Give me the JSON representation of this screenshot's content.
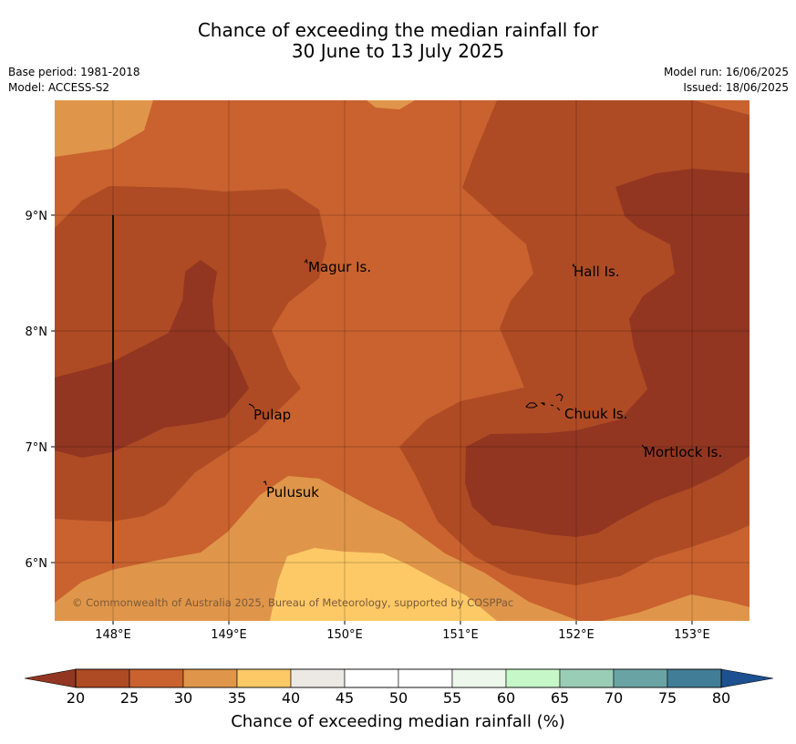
{
  "title": {
    "line1": "Chance of exceeding the median rainfall for",
    "line2": "30 June to 13 July 2025"
  },
  "meta": {
    "base_period": "Base period: 1981-2018",
    "model": "Model: ACCESS-S2",
    "model_run": "Model run: 16/06/2025",
    "issued": "Issued: 18/06/2025"
  },
  "map": {
    "lon_ticks": [
      "148°E",
      "149°E",
      "150°E",
      "151°E",
      "152°E",
      "153°E"
    ],
    "lat_ticks": [
      "9°N",
      "8°N",
      "7°N",
      "6°N"
    ],
    "places": [
      "Magur Is.",
      "Hall Is.",
      "Pulap",
      "Chuuk Is.",
      "Mortlock Is.",
      "Pulusuk"
    ],
    "copyright": "© Commonwealth of Australia 2025, Bureau of Meteorology, supported by COSPPac"
  },
  "colorbar": {
    "ticks": [
      "20",
      "25",
      "30",
      "35",
      "40",
      "45",
      "50",
      "55",
      "60",
      "65",
      "70",
      "75",
      "80"
    ],
    "colors": [
      "#ae4b24",
      "#c9622f",
      "#e0964a",
      "#fdc966",
      "#ece8e4",
      "#ffffff",
      "#ffffff",
      "#eef7ec",
      "#c6f7c8",
      "#9acdb5",
      "#6aa3a3",
      "#427d98"
    ],
    "below_color": "#923622",
    "above_color": "#1d5090",
    "label": "Chance of exceeding median rainfall (%)"
  }
}
